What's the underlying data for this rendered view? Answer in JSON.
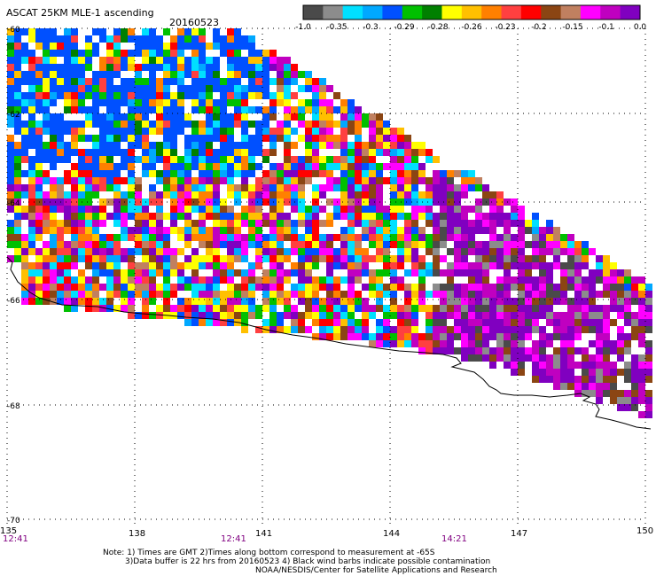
{
  "header": {
    "title": "ASCAT 25KM MLE-1 ascending",
    "date": "20160523"
  },
  "colorbar": {
    "colors": [
      "#4a4a4a",
      "#8c8c8c",
      "#00e0ff",
      "#00a8ff",
      "#0050ff",
      "#00c000",
      "#008000",
      "#ffff00",
      "#ffc000",
      "#ff8000",
      "#ff4040",
      "#ff0000",
      "#8b4513",
      "#c08060",
      "#ff00ff",
      "#c000c0",
      "#8000c0"
    ],
    "labels": [
      "-1.0",
      "-0.35",
      "-0.3",
      "-0.29",
      "-0.28",
      "-0.26",
      "-0.23",
      "-0.2",
      "-0.15",
      "-0.1",
      "0.0"
    ]
  },
  "axes": {
    "lat_labels": [
      "-60",
      "-62",
      "-64",
      "-66",
      "-68",
      "-70"
    ],
    "lon_labels": [
      "135",
      "138",
      "141",
      "144",
      "147",
      "150"
    ],
    "time_labels": [
      "12:41",
      "12:41",
      "14:21"
    ]
  },
  "footnote": {
    "line1": "Note: 1) Times are GMT 2)Times along bottom correspond to measurement at -65S",
    "line2": "3)Data buffer is 22 hrs from 20160523 4) Black wind barbs indicate possible contamination",
    "line3": "NOAA/NESDIS/Center for Satellite Applications and Research"
  },
  "style": {
    "time_color": "#800080",
    "grid_color": "#000000"
  }
}
